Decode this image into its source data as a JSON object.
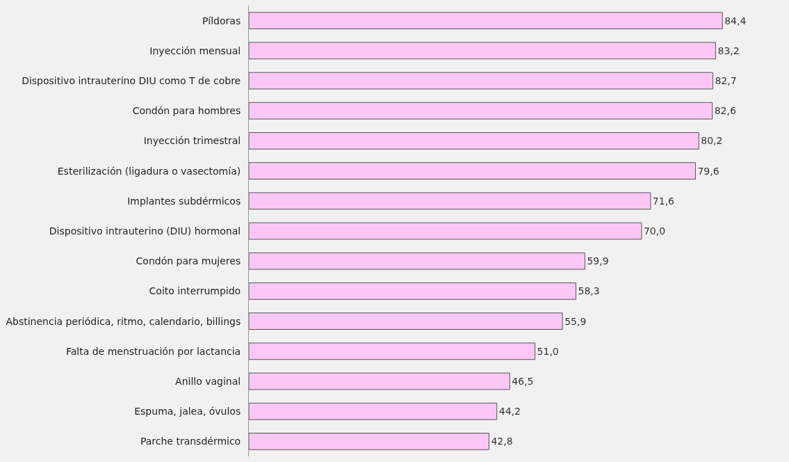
{
  "chart_data": {
    "type": "bar",
    "orientation": "horizontal",
    "categories": [
      "Píldoras",
      "Inyección mensual",
      "Dispositivo intrauterino DIU como T de cobre",
      "Condón para hombres",
      "Inyección trimestral",
      "Esterilización (ligadura o vasectomía)",
      "Implantes subdérmicos",
      "Dispositivo intrauterino (DIU) hormonal",
      "Condón para mujeres",
      "Coito interrumpido",
      "Abstinencia periódica, ritmo, calendario, billings",
      "Falta de menstruación por lactancia",
      "Anillo vaginal",
      "Espuma, jalea, óvulos",
      "Parche transdérmico"
    ],
    "values": [
      84.4,
      83.2,
      82.7,
      82.6,
      80.2,
      79.6,
      71.6,
      70.0,
      59.9,
      58.3,
      55.9,
      51.0,
      46.5,
      44.2,
      42.8
    ],
    "value_labels": [
      "84,4",
      "83,2",
      "82,7",
      "82,6",
      "80,2",
      "79,6",
      "71,6",
      "70,0",
      "59,9",
      "58,3",
      "55,9",
      "51,0",
      "46,5",
      "44,2",
      "42,8"
    ],
    "color": "#fbc8f5"
  }
}
